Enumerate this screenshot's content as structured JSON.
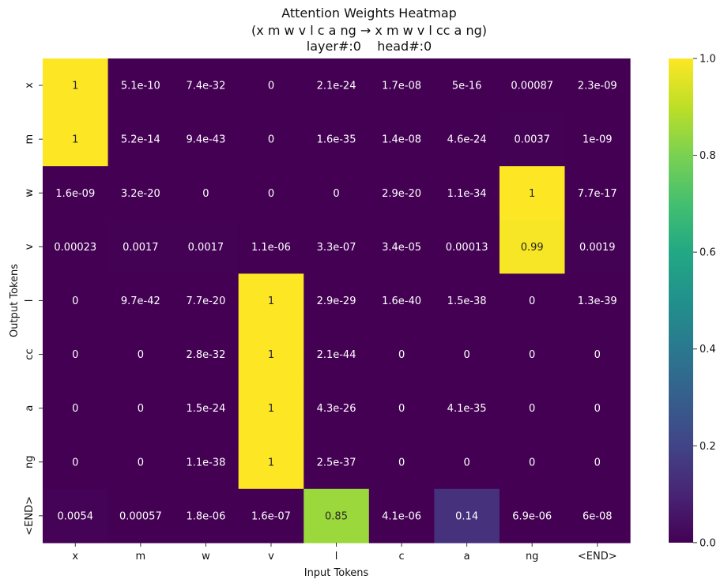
{
  "chart_data": {
    "type": "heatmap",
    "title": "Attention Weights Heatmap",
    "subtitle": "(x m w v l c a ng → x m w v l cc a ng)",
    "subtitle2": "layer#:0    head#:0",
    "xlabel": "Input Tokens",
    "ylabel": "Output Tokens",
    "x_tokens": [
      "x",
      "m",
      "w",
      "v",
      "l",
      "c",
      "a",
      "ng",
      "<END>"
    ],
    "y_tokens": [
      "x",
      "m",
      "w",
      "v",
      "l",
      "cc",
      "a",
      "ng",
      "<END>"
    ],
    "values": [
      [
        1,
        5.1e-10,
        7.4e-32,
        0,
        2.1e-24,
        1.7e-08,
        5e-16,
        0.00087,
        2.3e-09
      ],
      [
        1,
        5.2e-14,
        9.4e-43,
        0,
        1.6e-35,
        1.4e-08,
        4.6e-24,
        0.0037,
        1e-09
      ],
      [
        1.6e-09,
        3.2e-20,
        0,
        0,
        0,
        2.9e-20,
        1.1e-34,
        1,
        7.7e-17
      ],
      [
        0.00023,
        0.0017,
        0.0017,
        1.1e-06,
        3.3e-07,
        3.4e-05,
        0.00013,
        0.99,
        0.0019
      ],
      [
        0,
        9.7e-42,
        7.7e-20,
        1,
        2.9e-29,
        1.6e-40,
        1.5e-38,
        0,
        1.3e-39
      ],
      [
        0,
        0,
        2.8e-32,
        1,
        2.1e-44,
        0,
        0,
        0,
        0
      ],
      [
        0,
        0,
        1.5e-24,
        1,
        4.3e-26,
        0,
        4.1e-35,
        0,
        0
      ],
      [
        0,
        0,
        1.1e-38,
        1,
        2.5e-37,
        0,
        0,
        0,
        0
      ],
      [
        0.0054,
        0.00057,
        1.8e-06,
        1.6e-07,
        0.85,
        4.1e-06,
        0.14,
        6.9e-06,
        6e-08
      ]
    ],
    "annotations": [
      [
        "1",
        "5.1e-10",
        "7.4e-32",
        "0",
        "2.1e-24",
        "1.7e-08",
        "5e-16",
        "0.00087",
        "2.3e-09"
      ],
      [
        "1",
        "5.2e-14",
        "9.4e-43",
        "0",
        "1.6e-35",
        "1.4e-08",
        "4.6e-24",
        "0.0037",
        "1e-09"
      ],
      [
        "1.6e-09",
        "3.2e-20",
        "0",
        "0",
        "0",
        "2.9e-20",
        "1.1e-34",
        "1",
        "7.7e-17"
      ],
      [
        "0.00023",
        "0.0017",
        "0.0017",
        "1.1e-06",
        "3.3e-07",
        "3.4e-05",
        "0.00013",
        "0.99",
        "0.0019"
      ],
      [
        "0",
        "9.7e-42",
        "7.7e-20",
        "1",
        "2.9e-29",
        "1.6e-40",
        "1.5e-38",
        "0",
        "1.3e-39"
      ],
      [
        "0",
        "0",
        "2.8e-32",
        "1",
        "2.1e-44",
        "0",
        "0",
        "0",
        "0"
      ],
      [
        "0",
        "0",
        "1.5e-24",
        "1",
        "4.3e-26",
        "0",
        "4.1e-35",
        "0",
        "0"
      ],
      [
        "0",
        "0",
        "1.1e-38",
        "1",
        "2.5e-37",
        "0",
        "0",
        "0",
        "0"
      ],
      [
        "0.0054",
        "0.00057",
        "1.8e-06",
        "1.6e-07",
        "0.85",
        "4.1e-06",
        "0.14",
        "6.9e-06",
        "6e-08"
      ]
    ],
    "colormap": "viridis",
    "colorbar": {
      "min": 0,
      "max": 1,
      "ticks": [
        "0.0",
        "0.2",
        "0.4",
        "0.6",
        "0.8",
        "1.0"
      ]
    },
    "grid": false
  }
}
